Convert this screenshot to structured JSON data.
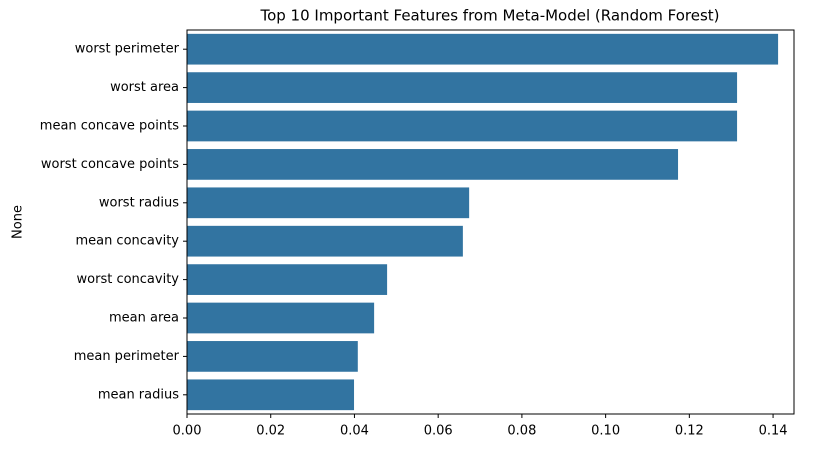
{
  "chart_data": {
    "type": "hbar",
    "title": "Top 10 Important Features from Meta-Model (Random Forest)",
    "y_label": "None",
    "categories": [
      "worst perimeter",
      "worst area",
      "mean concave points",
      "worst concave points",
      "worst radius",
      "mean concavity",
      "worst concavity",
      "mean area",
      "mean perimeter",
      "mean radius"
    ],
    "values": [
      0.1412,
      0.1314,
      0.1314,
      0.1173,
      0.0674,
      0.0659,
      0.0478,
      0.0447,
      0.0408,
      0.0399
    ],
    "color": "#3274a1",
    "xlim": [
      0,
      0.145
    ],
    "xticks": [
      {
        "value": 0,
        "label": "0.00"
      },
      0.02,
      0.04,
      0.06,
      0.08,
      {
        "value": 0.1,
        "label": "0.10"
      },
      0.12,
      0.14
    ]
  }
}
